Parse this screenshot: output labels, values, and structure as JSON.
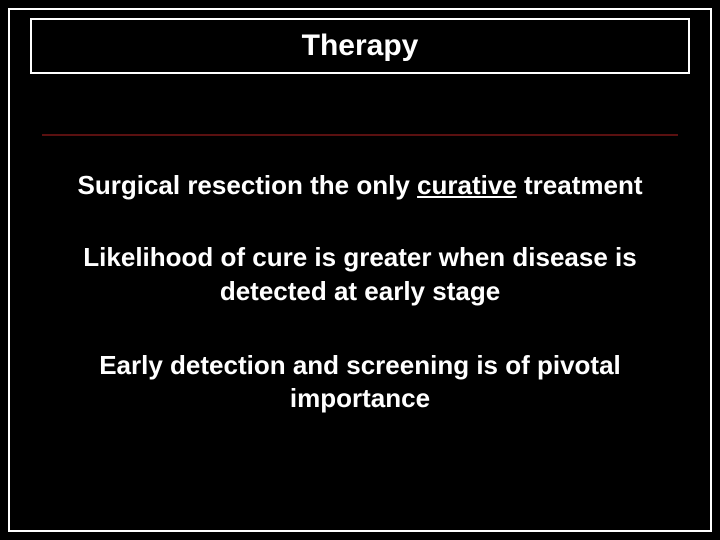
{
  "slide": {
    "background_color": "#000000",
    "text_color": "#ffffff",
    "border_color": "#ffffff",
    "divider_color": "#5a1010",
    "title": "Therapy",
    "title_fontsize": 30,
    "body_fontsize": 26,
    "body_fontweight": "bold",
    "line1_pre": "Surgical resection the only ",
    "line1_underlined": "curative",
    "line1_post": " treatment",
    "line2": "Likelihood of cure is greater when disease is detected at early stage",
    "line3": "Early detection and screening is of pivotal importance"
  }
}
